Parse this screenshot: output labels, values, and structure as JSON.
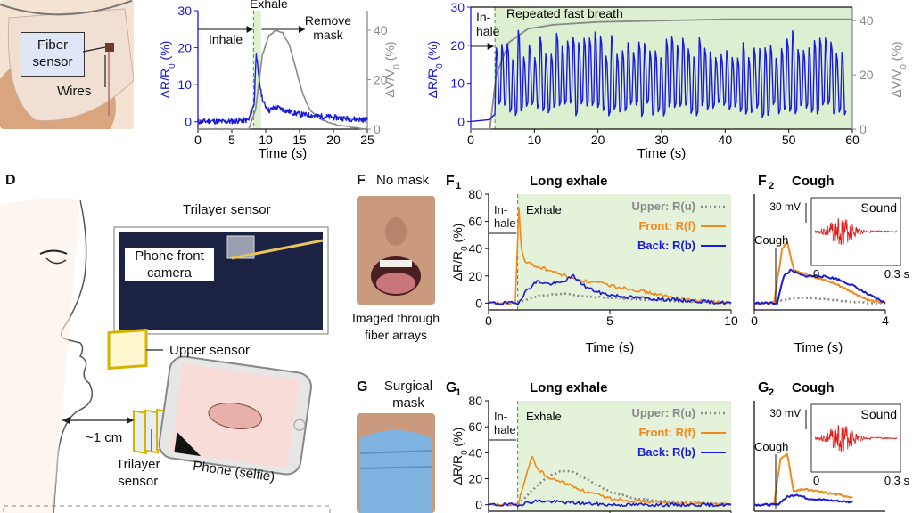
{
  "colors": {
    "blue": "#1a1adb",
    "gray": "#8a8a8a",
    "orange": "#f08a1e",
    "green_band": "#dcefd0",
    "green_dark": "#7fc66a",
    "dashed_green": "#3a9a2a"
  },
  "panelA": {
    "callouts": {
      "fiber_sensor": "Fiber\nsensor",
      "wires": "Wires"
    },
    "plot": {
      "ylabel_left": "ΔR/R0 (%)",
      "ylabel_right": "ΔV/V0 (%)",
      "xlabel": "Time (s)",
      "labels": {
        "inhale": "Inhale",
        "exhale": "Exhale",
        "remove": "Remove\nmask"
      },
      "xticks": [
        "0",
        "5",
        "10",
        "15",
        "20",
        "25"
      ],
      "yticks_left": [
        "0",
        "10",
        "20",
        "30"
      ],
      "yticks_right": [
        "0",
        "20",
        "40"
      ]
    }
  },
  "panelB": {
    "ylabel_left": "ΔR/R0 (%)",
    "ylabel_right": "ΔV/V0 (%)",
    "xlabel": "Time (s)",
    "labels": {
      "inhale": "In-\nhale",
      "repeated": "Repeated fast breath"
    },
    "xticks": [
      "0",
      "10",
      "20",
      "30",
      "40",
      "50",
      "60"
    ],
    "yticks_left": [
      "0",
      "10",
      "20",
      "30"
    ],
    "yticks_right": [
      "0",
      "20",
      "40"
    ]
  },
  "panelD": {
    "letter": "D",
    "labels": {
      "trilayer_top": "Trilayer sensor",
      "phone_front_camera": "Phone front\ncamera",
      "upper_sensor": "Upper sensor",
      "distance": "~1 cm",
      "trilayer_bottom": "Trilayer\nsensor",
      "phone_selfie": "Phone (selfie)"
    }
  },
  "panelF": {
    "letter": "F",
    "title": "No mask",
    "caption": "Imaged through\nfiber arrays"
  },
  "panelG": {
    "letter": "G",
    "title": "Surgical\nmask"
  },
  "panelF1": {
    "letter": "F",
    "sub": "1",
    "title": "Long exhale",
    "ylabel": "ΔR/R0 (%)",
    "xlabel": "Time (s)",
    "labels": {
      "inhale": "In-\nhale",
      "exhale": "Exhale"
    },
    "legend": [
      "Upper: R(u)",
      "Front: R(f)",
      "Back: R(b)"
    ],
    "xticks": [
      "0",
      "5",
      "10"
    ],
    "yticks": [
      "0",
      "20",
      "40",
      "60",
      "80"
    ]
  },
  "panelF2": {
    "letter": "F",
    "sub": "2",
    "title": "Cough",
    "xlabel": "Time (s)",
    "labels": {
      "cough": "Cough",
      "mv": "30 mV",
      "sound": "Sound"
    },
    "xticks": [
      "0",
      "4"
    ],
    "inset_xticks": [
      "0",
      "0.3 s"
    ]
  },
  "panelG1": {
    "letter": "G",
    "sub": "1",
    "title": "Long exhale",
    "ylabel": "ΔR/R0 (%)",
    "labels": {
      "inhale": "In-\nhale",
      "exhale": "Exhale"
    },
    "legend": [
      "Upper: R(u)",
      "Front: R(f)",
      "Back: R(b)"
    ],
    "yticks": [
      "0",
      "20",
      "40",
      "60",
      "80"
    ]
  },
  "panelG2": {
    "letter": "G",
    "sub": "2",
    "title": "Cough",
    "labels": {
      "cough": "Cough",
      "mv": "30 mV",
      "sound": "Sound"
    },
    "inset_xticks": [
      "0",
      "0.3 s"
    ]
  },
  "chart_data": [
    {
      "id": "A",
      "type": "line",
      "xlabel": "Time (s)",
      "ylabel": "ΔR/R0 (%)",
      "y2label": "ΔV/V0 (%)",
      "xlim": [
        0,
        25
      ],
      "ylim": [
        -2,
        30
      ],
      "y2lim": [
        0,
        48
      ],
      "series": [
        {
          "axis": "left",
          "color": "#1a1adb",
          "x": [
            0,
            2,
            4,
            6,
            7.5,
            8.3,
            8.6,
            8.9,
            9.3,
            9.7,
            10.5,
            11.5,
            13,
            15,
            18,
            21,
            25
          ],
          "y": [
            0,
            0.2,
            0,
            0.3,
            0.5,
            5,
            19,
            13,
            8,
            5,
            3,
            4,
            3,
            2,
            1.5,
            1,
            0.5
          ]
        },
        {
          "axis": "right",
          "color": "#8a8a8a",
          "x": [
            0,
            7.5,
            8.5,
            9.5,
            10.5,
            11.5,
            12.5,
            13.5,
            14.5,
            15.5,
            16.5,
            18,
            20,
            22,
            25
          ],
          "y": [
            0,
            0,
            8,
            30,
            38,
            40,
            39,
            34,
            24,
            14,
            8,
            4,
            2,
            1,
            0
          ]
        }
      ]
    },
    {
      "id": "B",
      "type": "line",
      "xlabel": "Time (s)",
      "ylabel": "ΔR/R0 (%)",
      "y2label": "ΔV/V0 (%)",
      "xlim": [
        0,
        60
      ],
      "ylim": [
        -2,
        30
      ],
      "y2lim": [
        0,
        45
      ],
      "series": [
        {
          "axis": "left",
          "color": "#1a1adb",
          "x_start": 3.8,
          "x_end": 59,
          "cycles": 64,
          "low": 3,
          "high": 20
        },
        {
          "axis": "right",
          "color": "#8a8a8a",
          "x": [
            0,
            3,
            4,
            6,
            9,
            13,
            20,
            30,
            40,
            50,
            60
          ],
          "y": [
            0,
            0,
            20,
            32,
            37,
            38.5,
            39.5,
            40,
            40.5,
            40.5,
            40.5
          ]
        }
      ]
    },
    {
      "id": "F1",
      "type": "line",
      "xlabel": "Time (s)",
      "ylabel": "ΔR/R0 (%)",
      "xlim": [
        0,
        10
      ],
      "ylim": [
        -5,
        80
      ],
      "series": [
        {
          "name": "Upper: R(u)",
          "color": "#8a8a8a",
          "dash": true,
          "x": [
            0,
            1.2,
            1.5,
            2,
            2.5,
            3,
            3.5,
            4,
            5,
            6,
            7,
            8,
            9,
            10
          ],
          "y": [
            0,
            0,
            2,
            5,
            6,
            7,
            6,
            5,
            4,
            3,
            2,
            1,
            1,
            0
          ]
        },
        {
          "name": "Front: R(f)",
          "color": "#f08a1e",
          "x": [
            0,
            1.1,
            1.25,
            1.35,
            1.5,
            2,
            2.5,
            3,
            3.5,
            4,
            4.5,
            5,
            6,
            7,
            8,
            9,
            10
          ],
          "y": [
            0,
            0,
            70,
            40,
            30,
            27,
            24,
            21,
            18,
            16,
            15,
            13,
            10,
            6,
            3,
            1,
            0
          ]
        },
        {
          "name": "Back: R(b)",
          "color": "#1a1adb",
          "x": [
            0,
            1.2,
            1.6,
            2,
            2.5,
            3,
            3.5,
            4,
            4.5,
            5,
            6,
            7,
            8,
            9,
            10
          ],
          "y": [
            0,
            0,
            10,
            16,
            14,
            15,
            20,
            12,
            8,
            6,
            4,
            3,
            2,
            1,
            0
          ]
        }
      ]
    },
    {
      "id": "F2",
      "type": "line",
      "xlabel": "Time (s)",
      "xlim": [
        0,
        4
      ],
      "ylim": [
        -5,
        80
      ],
      "series": [
        {
          "name": "Upper: R(u)",
          "color": "#8a8a8a",
          "dash": true,
          "x": [
            0,
            0.5,
            1,
            1.5,
            2,
            2.5,
            3,
            3.5,
            4
          ],
          "y": [
            0,
            0,
            3,
            4,
            3,
            2,
            1,
            0,
            0
          ]
        },
        {
          "name": "Front: R(f)",
          "color": "#f08a1e",
          "x": [
            0,
            0.6,
            0.85,
            1.0,
            1.2,
            1.5,
            2,
            2.5,
            3,
            3.5,
            4
          ],
          "y": [
            0,
            0,
            40,
            45,
            25,
            22,
            18,
            14,
            8,
            2,
            0
          ]
        },
        {
          "name": "Back: R(b)",
          "color": "#1a1adb",
          "x": [
            0,
            0.7,
            0.9,
            1.1,
            1.5,
            2,
            2.5,
            3,
            3.5,
            4
          ],
          "y": [
            0,
            0,
            20,
            24,
            20,
            20,
            18,
            13,
            6,
            0
          ]
        }
      ]
    },
    {
      "id": "G1",
      "type": "line",
      "ylabel": "ΔR/R0 (%)",
      "xlim": [
        0,
        10
      ],
      "ylim": [
        -5,
        80
      ],
      "series": [
        {
          "name": "Upper: R(u)",
          "color": "#8a8a8a",
          "dash": true,
          "x": [
            0,
            1.2,
            2,
            2.5,
            3,
            3.5,
            4,
            5,
            6,
            7,
            8,
            9,
            10
          ],
          "y": [
            0,
            0,
            15,
            22,
            26,
            25,
            20,
            10,
            5,
            3,
            2,
            1,
            0
          ]
        },
        {
          "name": "Front: R(f)",
          "color": "#f08a1e",
          "x": [
            0,
            1.2,
            1.6,
            1.8,
            2,
            2.5,
            3,
            4,
            5,
            6,
            7,
            8,
            10
          ],
          "y": [
            0,
            0,
            25,
            38,
            28,
            20,
            18,
            10,
            5,
            3,
            2,
            1,
            0
          ]
        },
        {
          "name": "Back: R(b)",
          "color": "#1a1adb",
          "x": [
            0,
            1.2,
            2,
            3,
            4,
            5,
            10
          ],
          "y": [
            0,
            0,
            3,
            2,
            1,
            0,
            0
          ]
        }
      ]
    },
    {
      "id": "G2",
      "type": "line",
      "xlim": [
        0,
        4
      ],
      "ylim": [
        -5,
        80
      ],
      "series": [
        {
          "name": "Front: R(f)",
          "color": "#f08a1e",
          "x": [
            0,
            0.6,
            0.8,
            1.0,
            1.2,
            1.5,
            2,
            2.5,
            3
          ],
          "y": [
            0,
            0,
            35,
            40,
            10,
            12,
            10,
            8,
            6
          ]
        },
        {
          "name": "Back: R(b)",
          "color": "#1a1adb",
          "x": [
            0,
            0.7,
            1.0,
            1.3,
            1.6,
            2,
            2.5,
            3
          ],
          "y": [
            0,
            0,
            6,
            8,
            5,
            4,
            3,
            2
          ]
        }
      ]
    }
  ]
}
